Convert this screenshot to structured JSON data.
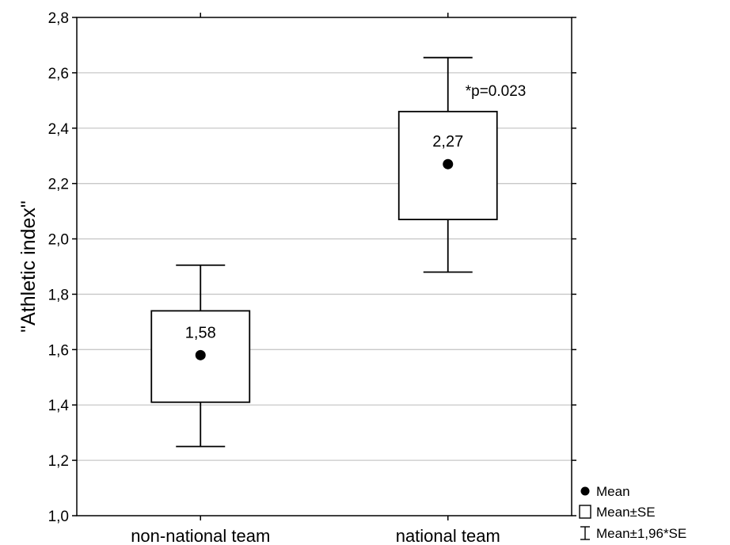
{
  "chart_data": {
    "type": "box",
    "title": "",
    "xlabel": "",
    "ylabel": "\"Athletic index\"",
    "ylim": [
      1.0,
      2.8
    ],
    "yticks": [
      1.0,
      1.2,
      1.4,
      1.6,
      1.8,
      2.0,
      2.2,
      2.4,
      2.6,
      2.8
    ],
    "ytick_labels": [
      "1,0",
      "1,2",
      "1,4",
      "1,6",
      "1,8",
      "2,0",
      "2,2",
      "2,4",
      "2,6",
      "2,8"
    ],
    "grid": true,
    "legend_position": "bottom-right, outside plot",
    "categories": [
      "non-national team",
      "national team"
    ],
    "boxes": [
      {
        "category": "non-national team",
        "mean": 1.58,
        "mean_label": "1,58",
        "se_low": 1.41,
        "se_high": 1.74,
        "ci_low": 1.25,
        "ci_high": 1.905
      },
      {
        "category": "national team",
        "mean": 2.27,
        "mean_label": "2,27",
        "se_low": 2.07,
        "se_high": 2.46,
        "ci_low": 1.88,
        "ci_high": 2.655
      }
    ],
    "annotations": [
      {
        "text": "*p=0.023",
        "category": "national team"
      }
    ],
    "legend": [
      {
        "symbol": "circle",
        "label": "Mean"
      },
      {
        "symbol": "box",
        "label": "Mean±SE"
      },
      {
        "symbol": "whisker",
        "label": "Mean±1,96*SE"
      }
    ],
    "colors": {
      "ink": "#000000",
      "grid": "#c8c8c8",
      "background": "#ffffff"
    }
  }
}
